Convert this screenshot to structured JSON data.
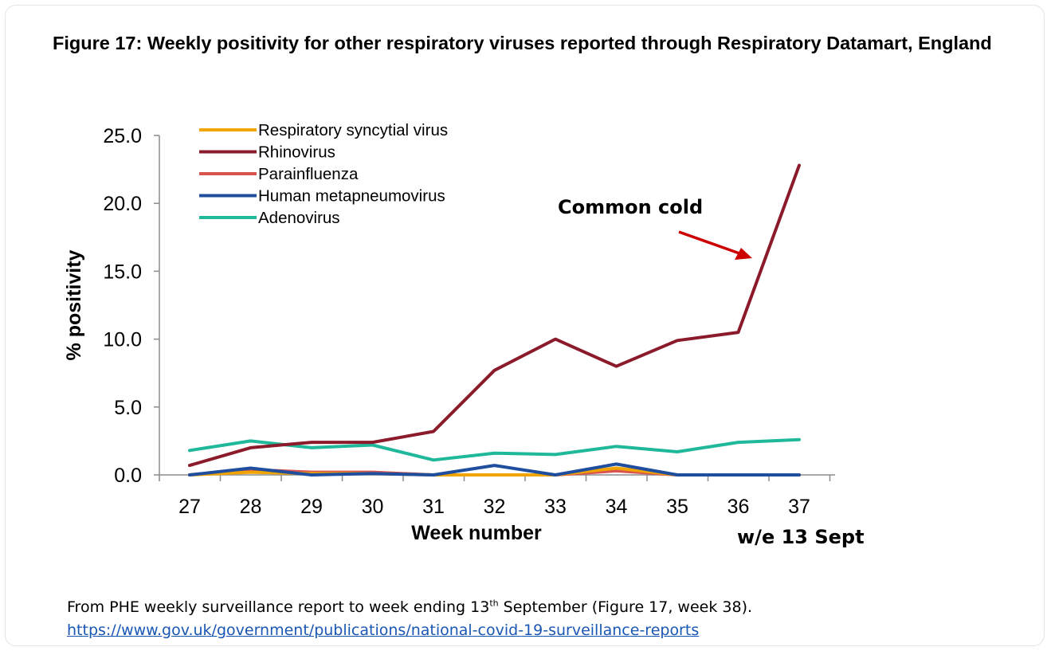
{
  "figure": {
    "title": "Figure 17: Weekly positivity for other respiratory viruses reported through Respiratory Datamart, England"
  },
  "caption": {
    "text_before": "From PHE weekly surveillance report to week ending 13",
    "superscript": "th",
    "text_after": " September (Figure 17, week 38).",
    "link": "https://www.gov.uk/government/publications/national-covid-19-surveillance-reports"
  },
  "chart_data": {
    "type": "line",
    "title": "",
    "xlabel": "Week number",
    "ylabel": "% positivity",
    "x": [
      27,
      28,
      29,
      30,
      31,
      32,
      33,
      34,
      35,
      36,
      37
    ],
    "x_tick_labels": [
      "27",
      "28",
      "29",
      "30",
      "31",
      "32",
      "33",
      "34",
      "35",
      "36",
      "37"
    ],
    "y_tick_labels": [
      "0.0",
      "5.0",
      "10.0",
      "15.0",
      "20.0",
      "25.0"
    ],
    "ylim": [
      0,
      25
    ],
    "grid": false,
    "legend_position": "top-left",
    "series": [
      {
        "name": "Respiratory syncytial virus",
        "color": "#f0a400",
        "values": [
          0,
          0.2,
          0.1,
          0.1,
          0,
          0,
          0,
          0.5,
          0,
          0,
          0
        ]
      },
      {
        "name": "Rhinovirus",
        "color": "#8b1a2b",
        "values": [
          0.7,
          2.0,
          2.4,
          2.4,
          3.2,
          7.7,
          10.0,
          8.0,
          9.9,
          10.5,
          22.8
        ]
      },
      {
        "name": "Parainfluenza",
        "color": "#d9534f",
        "values": [
          0,
          0.4,
          0.2,
          0.2,
          0,
          0,
          0,
          0.3,
          0,
          0,
          0
        ]
      },
      {
        "name": "Human metapneumovirus",
        "color": "#1f4e9e",
        "values": [
          0,
          0.5,
          0,
          0.1,
          0,
          0.7,
          0,
          0.8,
          0,
          0,
          0
        ]
      },
      {
        "name": "Adenovirus",
        "color": "#1fb89a",
        "values": [
          1.8,
          2.5,
          2.0,
          2.2,
          1.1,
          1.6,
          1.5,
          2.1,
          1.7,
          2.4,
          2.6
        ]
      }
    ],
    "annotations": [
      {
        "text": "Common cold",
        "color": "#cc0000"
      },
      {
        "text": "w/e 13 Sept"
      }
    ]
  }
}
